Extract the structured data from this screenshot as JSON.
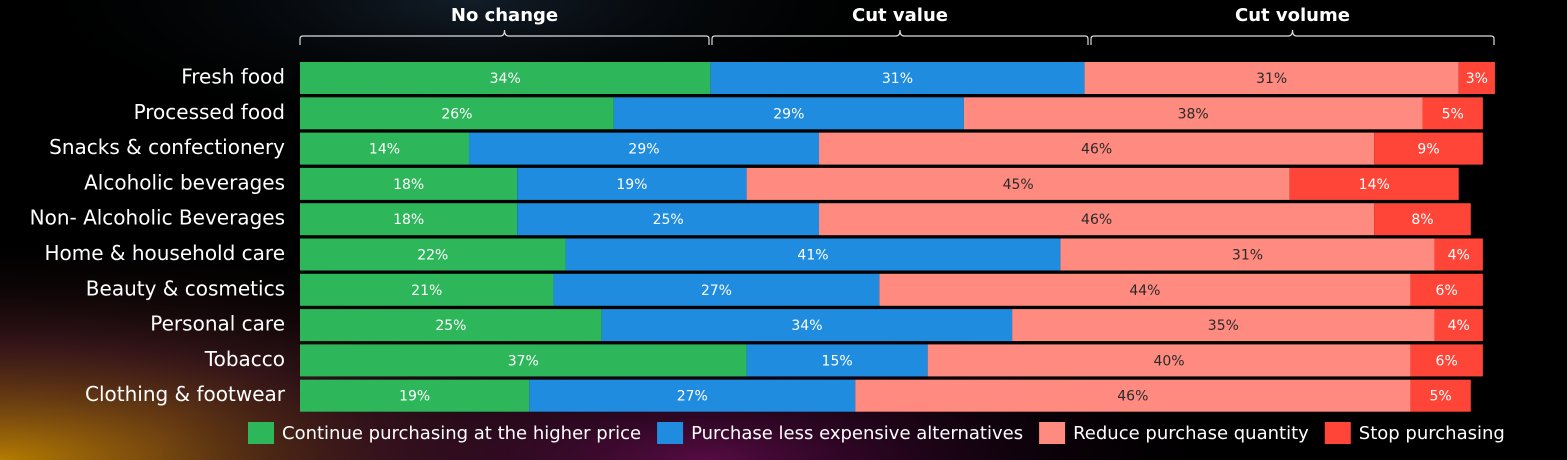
{
  "chart_data": {
    "type": "stacked-bar",
    "orientation": "horizontal",
    "groups": [
      "No change",
      "Cut value",
      "Cut volume"
    ],
    "categories": [
      "Fresh food",
      "Processed food",
      "Snacks & confectionery",
      "Alcoholic beverages",
      "Non- Alcoholic Beverages",
      "Home & household care",
      "Beauty & cosmetics",
      "Personal care",
      "Tobacco",
      "Clothing & footwear"
    ],
    "series": [
      {
        "name": "Continue purchasing at the higher price",
        "color": "#2db75a",
        "label_color": "#ffffff",
        "values": [
          34,
          26,
          14,
          18,
          18,
          22,
          21,
          25,
          37,
          19
        ],
        "value_labels": [
          "34%",
          "26%",
          "14%",
          "18%",
          "18%",
          "22%",
          "21%",
          "25%",
          "37%",
          "19%"
        ]
      },
      {
        "name": "Purchase less expensive alternatives",
        "color": "#1f8ce0",
        "label_color": "#ffffff",
        "values": [
          31,
          29,
          29,
          19,
          25,
          41,
          27,
          34,
          15,
          27
        ],
        "value_labels": [
          "31%",
          "29%",
          "29%",
          "19%",
          "25%",
          "41%",
          "27%",
          "34%",
          "15%",
          "27%"
        ]
      },
      {
        "name": "Reduce purchase quantity",
        "color": "#ff8a80",
        "label_color": "#2a2a2a",
        "values": [
          31,
          38,
          46,
          45,
          46,
          31,
          44,
          35,
          40,
          46
        ],
        "value_labels": [
          "31%",
          "38%",
          "46%",
          "45%",
          "46%",
          "31%",
          "44%",
          "35%",
          "40%",
          "46%"
        ]
      },
      {
        "name": "Stop purchasing",
        "color": "#ff4538",
        "label_color": "#ffffff",
        "values": [
          3,
          5,
          9,
          14,
          8,
          4,
          6,
          4,
          6,
          5
        ],
        "value_labels": [
          "3%",
          "5%",
          "9%",
          "14%",
          "8%",
          "4%",
          "6%",
          "4%",
          "6%",
          "5%"
        ]
      }
    ]
  }
}
